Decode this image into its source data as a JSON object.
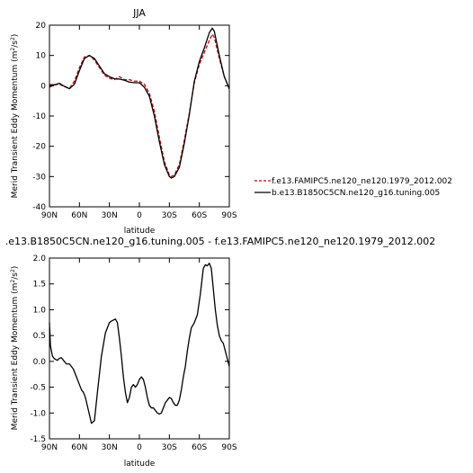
{
  "chart_data": [
    {
      "type": "line",
      "title": "JJA",
      "xlabel": "latitude",
      "ylabel": "Merid Transient Eddy Momentum (m²/s²)",
      "ylabel_main": "Merid Transient Eddy Momentum (m",
      "ylabel_sup": "2",
      "ylabel_mid": "/s",
      "ylabel_sup2": "2",
      "ylabel_end": ")",
      "xlim": [
        90,
        -90
      ],
      "ylim": [
        -40,
        20
      ],
      "xticks": [
        90,
        60,
        30,
        0,
        -30,
        -60,
        -90
      ],
      "xticklabels": [
        "90N",
        "60N",
        "30N",
        "0",
        "30S",
        "60S",
        "90S"
      ],
      "yticks": [
        -40,
        -30,
        -20,
        -10,
        0,
        10,
        20
      ],
      "yticklabels": [
        "-40",
        "-30",
        "-20",
        "-10",
        "0",
        "10",
        "20"
      ],
      "legend_position": "right",
      "series": [
        {
          "name": "f.e13.FAMIPC5.ne120_ne120.1979_2012.002",
          "color": "#cc0000",
          "dash": "dashed",
          "x": [
            90,
            85,
            80,
            75,
            70,
            65,
            60,
            55,
            50,
            45,
            40,
            35,
            30,
            25,
            20,
            15,
            10,
            5,
            0,
            -5,
            -10,
            -15,
            -20,
            -25,
            -30,
            -32,
            -35,
            -40,
            -45,
            -50,
            -55,
            -60,
            -65,
            -70,
            -73,
            -75,
            -80,
            -85,
            -90
          ],
          "values": [
            -0.5,
            0.3,
            0.5,
            -0.3,
            -0.8,
            1.5,
            6.0,
            9.5,
            10.0,
            8.5,
            6.0,
            3.5,
            2.5,
            2.0,
            3.0,
            2.0,
            2.0,
            1.5,
            1.5,
            0.5,
            -2.5,
            -8.5,
            -17.0,
            -25.0,
            -29.5,
            -30.0,
            -29.5,
            -26.0,
            -18.0,
            -9.0,
            1.0,
            7.0,
            11.0,
            15.0,
            17.0,
            16.0,
            9.0,
            3.0,
            -1.0
          ]
        },
        {
          "name": "b.e13.B1850C5CN.ne120_g16.tuning.005",
          "color": "#000000",
          "dash": "solid",
          "x": [
            90,
            85,
            80,
            75,
            70,
            65,
            60,
            55,
            50,
            45,
            40,
            35,
            30,
            25,
            20,
            15,
            10,
            5,
            0,
            -5,
            -10,
            -15,
            -20,
            -25,
            -30,
            -32,
            -35,
            -40,
            -45,
            -50,
            -55,
            -60,
            -65,
            -70,
            -73,
            -75,
            -80,
            -85,
            -90
          ],
          "values": [
            0.3,
            0.3,
            0.8,
            -0.2,
            -1.0,
            0.5,
            5.0,
            9.0,
            10.0,
            9.0,
            6.5,
            4.0,
            3.0,
            2.3,
            2.2,
            1.8,
            1.2,
            1.0,
            1.0,
            -0.5,
            -3.5,
            -10.0,
            -18.5,
            -26.0,
            -30.0,
            -30.5,
            -30.0,
            -27.0,
            -19.0,
            -9.5,
            1.5,
            8.0,
            12.5,
            17.5,
            19.0,
            18.0,
            10.0,
            3.0,
            -1.0
          ]
        }
      ]
    },
    {
      "type": "line",
      "title": ".e13.B1850C5CN.ne120_g16.tuning.005 - f.e13.FAMIPC5.ne120_ne120.1979_2012.002",
      "xlabel": "latitude",
      "ylabel": "Merid Transient Eddy Momentum (m²/s²)",
      "ylabel_main": "Merid Transient Eddy Momentum (m",
      "ylabel_sup": "2",
      "ylabel_mid": "/s",
      "ylabel_sup2": "2",
      "ylabel_end": ")",
      "xlim": [
        90,
        -90
      ],
      "ylim": [
        -1.5,
        2.0
      ],
      "xticks": [
        90,
        60,
        30,
        0,
        -30,
        -60,
        -90
      ],
      "xticklabels": [
        "90N",
        "60N",
        "30N",
        "0",
        "30S",
        "60S",
        "90S"
      ],
      "yticks": [
        -1.5,
        -1.0,
        -0.5,
        0.0,
        0.5,
        1.0,
        1.5,
        2.0
      ],
      "yticklabels": [
        "-1.5",
        "-1.0",
        "-0.5",
        "0.0",
        "0.5",
        "1.0",
        "1.5",
        "2.0"
      ],
      "series": [
        {
          "color": "#000000",
          "dash": "solid",
          "x": [
            90,
            89,
            87,
            85,
            82,
            80,
            78,
            76,
            73,
            70,
            66,
            63,
            60,
            58,
            56,
            54,
            51,
            48,
            45,
            42,
            38,
            34,
            30,
            28,
            26,
            24,
            22,
            20,
            18,
            16,
            14,
            12,
            10,
            8,
            6,
            4,
            2,
            0,
            -2,
            -4,
            -6,
            -8,
            -10,
            -12,
            -14,
            -16,
            -18,
            -20,
            -22,
            -24,
            -26,
            -28,
            -30,
            -32,
            -34,
            -36,
            -38,
            -40,
            -42,
            -44,
            -46,
            -48,
            -50,
            -52,
            -55,
            -58,
            -61,
            -64,
            -66,
            -68,
            -70,
            -72,
            -74,
            -76,
            -78,
            -80,
            -82,
            -84,
            -86,
            -88,
            -90
          ],
          "values": [
            0.75,
            0.3,
            0.1,
            0.05,
            0.02,
            0.06,
            0.07,
            0.02,
            -0.05,
            -0.05,
            -0.15,
            -0.3,
            -0.45,
            -0.55,
            -0.6,
            -0.7,
            -0.95,
            -1.2,
            -1.15,
            -0.6,
            0.1,
            0.55,
            0.75,
            0.78,
            0.8,
            0.82,
            0.75,
            0.45,
            0.1,
            -0.3,
            -0.6,
            -0.8,
            -0.7,
            -0.5,
            -0.45,
            -0.5,
            -0.45,
            -0.35,
            -0.3,
            -0.35,
            -0.5,
            -0.7,
            -0.85,
            -0.9,
            -0.9,
            -0.95,
            -1.0,
            -1.02,
            -1.0,
            -0.9,
            -0.8,
            -0.75,
            -0.7,
            -0.72,
            -0.8,
            -0.85,
            -0.85,
            -0.75,
            -0.55,
            -0.3,
            -0.1,
            0.2,
            0.45,
            0.65,
            0.75,
            0.9,
            1.3,
            1.8,
            1.87,
            1.85,
            1.9,
            1.8,
            1.4,
            1.0,
            0.7,
            0.5,
            0.4,
            0.35,
            0.2,
            0.05,
            -0.1
          ]
        }
      ]
    }
  ]
}
